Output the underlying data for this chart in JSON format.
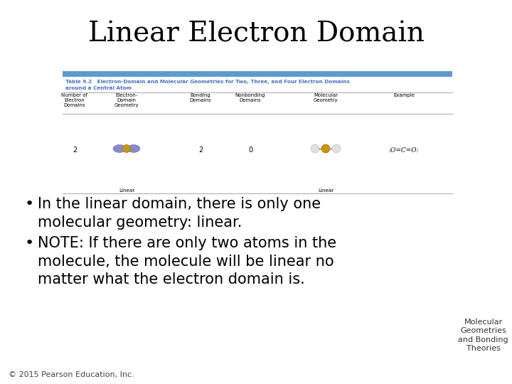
{
  "title": "Linear Electron Domain",
  "background_color": "#ffffff",
  "title_fontsize": 28,
  "title_color": "#000000",
  "table_title_line1": "Table 9.2   Electron-Domain and Molecular Geometries for Two, Three, and Four Electron Domains",
  "table_title_line2": "around a Central Atom",
  "col_headers": [
    "Number of\nElectron\nDomains",
    "Electron-\nDomain\nGeometry",
    "Bonding\nDomains",
    "Nonbonding\nDomains",
    "Molecular\nGeometry",
    "Example"
  ],
  "bullet1_line1": "In the linear domain, there is only one",
  "bullet1_line2": "molecular geometry: linear.",
  "bullet2_line1": "NOTE: If there are only two atoms in the",
  "bullet2_line2": "molecule, the molecule will be linear no",
  "bullet2_line3": "matter what the electron domain is.",
  "footer": "© 2015 Pearson Education, Inc.",
  "sidebar": "Molecular\nGeometries\nand Bonding\nTheories",
  "table_header_color": "#5b9bd5",
  "table_title_color": "#4472c4",
  "background_color2": "#ffffff",
  "text_color": "#000000",
  "bullet_fontsize": 15,
  "footer_fontsize": 8,
  "sidebar_fontsize": 8
}
